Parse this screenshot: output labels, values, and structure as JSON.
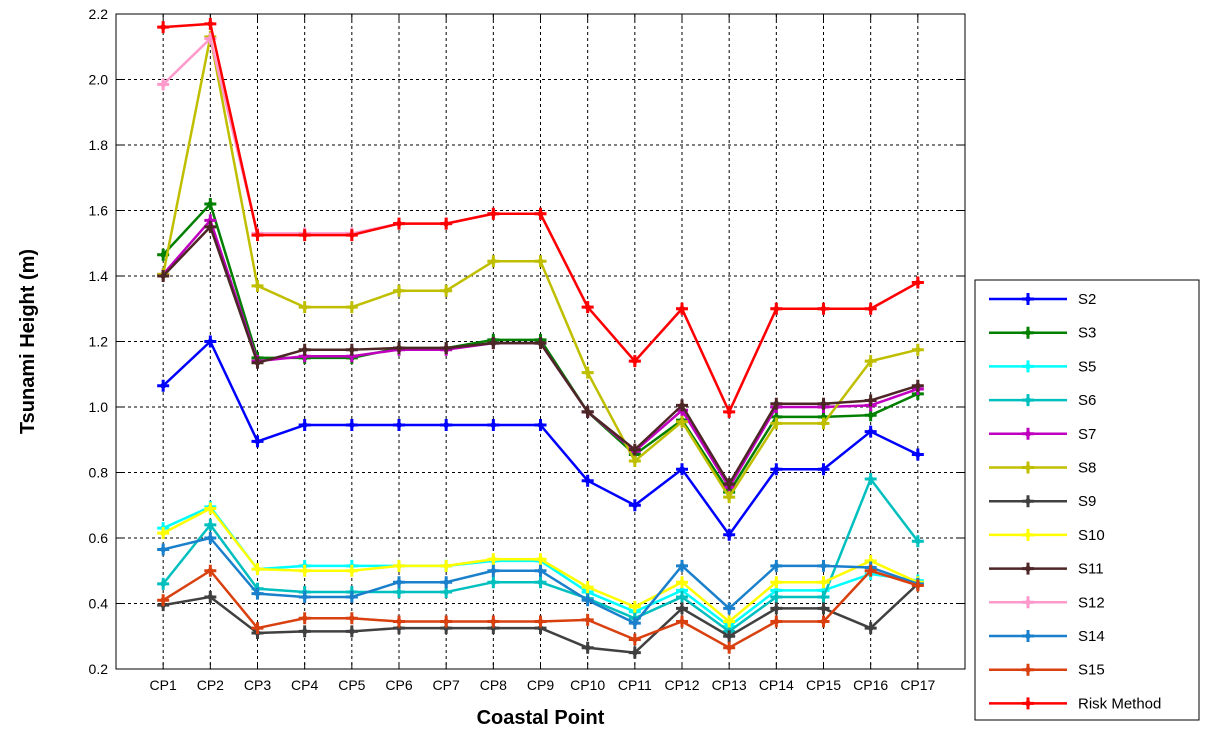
{
  "chart_data": {
    "type": "line",
    "xlabel": "Coastal Point",
    "ylabel": "Tsunami Height (m)",
    "categories": [
      "CP1",
      "CP2",
      "CP3",
      "CP4",
      "CP5",
      "CP6",
      "CP7",
      "CP8",
      "CP9",
      "CP10",
      "CP11",
      "CP12",
      "CP13",
      "CP14",
      "CP15",
      "CP16",
      "CP17"
    ],
    "ylim": [
      0.2,
      2.2
    ],
    "yticks": [
      "0.2",
      "0.4",
      "0.6",
      "0.8",
      "1.0",
      "1.2",
      "1.4",
      "1.6",
      "1.8",
      "2.0",
      "2.2"
    ],
    "grid": true,
    "legend_position": "right",
    "series": [
      {
        "name": "S2",
        "color": "#0000ff",
        "values": [
          1.065,
          1.2,
          0.895,
          0.945,
          0.945,
          0.945,
          0.945,
          0.945,
          0.945,
          0.775,
          0.7,
          0.81,
          0.61,
          0.81,
          0.81,
          0.925,
          0.855
        ]
      },
      {
        "name": "S3",
        "color": "#007f00",
        "values": [
          1.465,
          1.62,
          1.15,
          1.15,
          1.15,
          1.18,
          1.18,
          1.205,
          1.205,
          0.985,
          0.855,
          0.96,
          0.74,
          0.97,
          0.97,
          0.975,
          1.04
        ]
      },
      {
        "name": "S5",
        "color": "#00ffff",
        "values": [
          0.63,
          0.695,
          0.505,
          0.515,
          0.515,
          0.515,
          0.515,
          0.53,
          0.53,
          0.435,
          0.375,
          0.44,
          0.33,
          0.44,
          0.44,
          0.49,
          0.47
        ]
      },
      {
        "name": "S6",
        "color": "#00bfbf",
        "values": [
          0.46,
          0.64,
          0.445,
          0.435,
          0.435,
          0.435,
          0.435,
          0.465,
          0.465,
          0.415,
          0.355,
          0.42,
          0.315,
          0.42,
          0.42,
          0.78,
          0.59
        ]
      },
      {
        "name": "S7",
        "color": "#bf00bf",
        "values": [
          1.405,
          1.57,
          1.14,
          1.155,
          1.155,
          1.175,
          1.175,
          1.195,
          1.195,
          0.985,
          0.865,
          0.99,
          0.755,
          1.0,
          1.0,
          1.005,
          1.055
        ]
      },
      {
        "name": "S8",
        "color": "#bfbf00",
        "values": [
          1.405,
          2.13,
          1.37,
          1.305,
          1.305,
          1.355,
          1.355,
          1.445,
          1.445,
          1.105,
          0.835,
          0.955,
          0.725,
          0.95,
          0.95,
          1.14,
          1.175
        ]
      },
      {
        "name": "S9",
        "color": "#404040",
        "values": [
          0.395,
          0.42,
          0.31,
          0.315,
          0.315,
          0.325,
          0.325,
          0.325,
          0.325,
          0.265,
          0.25,
          0.385,
          0.3,
          0.385,
          0.385,
          0.325,
          0.46
        ]
      },
      {
        "name": "S10",
        "color": "#ffff00",
        "values": [
          0.615,
          0.69,
          0.505,
          0.5,
          0.5,
          0.515,
          0.515,
          0.535,
          0.535,
          0.45,
          0.39,
          0.465,
          0.345,
          0.465,
          0.465,
          0.53,
          0.465
        ]
      },
      {
        "name": "S11",
        "color": "#4d2626",
        "values": [
          1.4,
          1.55,
          1.135,
          1.175,
          1.175,
          1.18,
          1.18,
          1.195,
          1.195,
          0.985,
          0.87,
          1.005,
          0.765,
          1.01,
          1.01,
          1.02,
          1.065
        ]
      },
      {
        "name": "S12",
        "color": "#ff99cc",
        "values": [
          1.985,
          2.125,
          1.53,
          1.53,
          1.53,
          1.56,
          1.56,
          1.59,
          1.59,
          1.305,
          1.14,
          1.3,
          0.985,
          1.3,
          1.3,
          1.3,
          1.38
        ]
      },
      {
        "name": "S14",
        "color": "#1a80cc",
        "values": [
          0.565,
          0.6,
          0.43,
          0.42,
          0.42,
          0.465,
          0.465,
          0.5,
          0.5,
          0.41,
          0.34,
          0.515,
          0.385,
          0.515,
          0.515,
          0.51,
          0.46
        ]
      },
      {
        "name": "S15",
        "color": "#d94010",
        "values": [
          0.41,
          0.5,
          0.325,
          0.355,
          0.355,
          0.345,
          0.345,
          0.345,
          0.345,
          0.35,
          0.29,
          0.345,
          0.265,
          0.345,
          0.345,
          0.5,
          0.455
        ]
      },
      {
        "name": "Risk Method",
        "color": "#ff0000",
        "values": [
          2.16,
          2.17,
          1.525,
          1.525,
          1.525,
          1.56,
          1.56,
          1.59,
          1.59,
          1.305,
          1.14,
          1.3,
          0.985,
          1.3,
          1.3,
          1.3,
          1.38
        ]
      }
    ]
  }
}
